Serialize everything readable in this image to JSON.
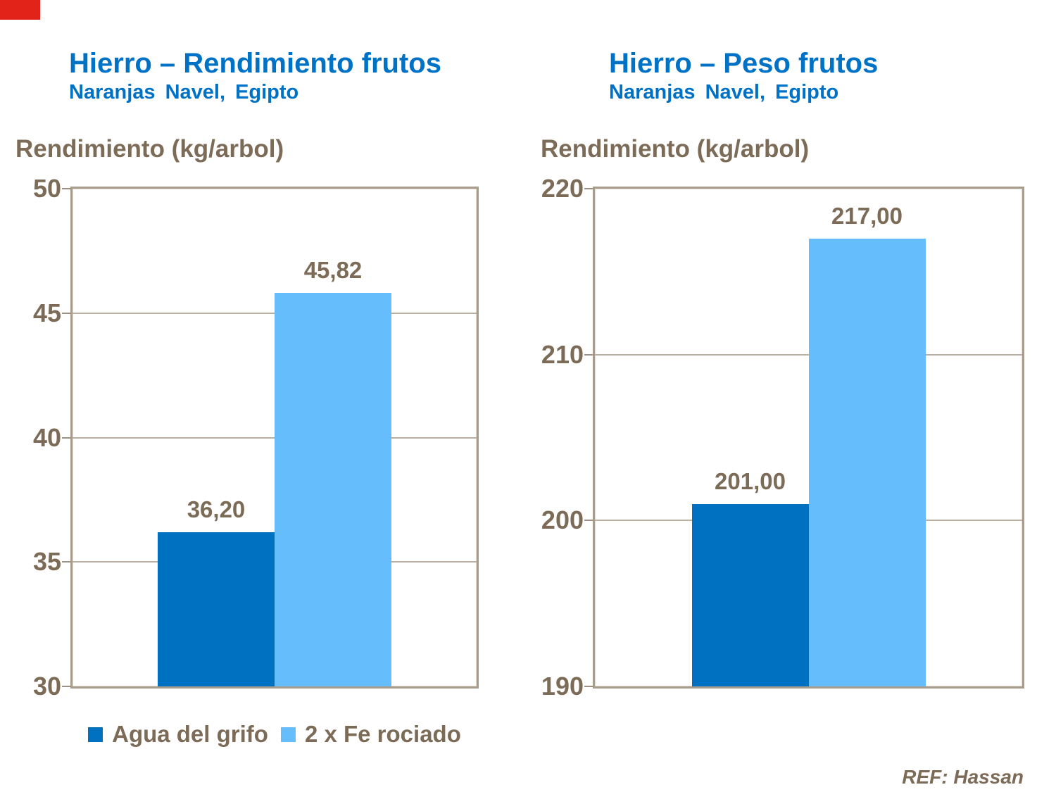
{
  "slide": {
    "background": "#FFFFFF",
    "corner_color": "#E2231A",
    "title_color": "#0072C6",
    "text_color": "#7C6B57"
  },
  "chart_data": [
    {
      "type": "bar",
      "title": "Hierro – Rendimiento frutos",
      "subtitle": "Naranjas Navel, Egipto",
      "ylabel": "Rendimiento (kg/arbol)",
      "xlabel": "",
      "categories": [
        ""
      ],
      "series": [
        {
          "name": "Agua del grifo",
          "value": 36.2,
          "value_label": "36,20",
          "color": "#0070C0"
        },
        {
          "name": "2 x Fe rociado",
          "value": 45.82,
          "value_label": "45,82",
          "color": "#66BDFB"
        }
      ],
      "ylim": [
        30,
        50
      ],
      "yticks": [
        30,
        35,
        40,
        45,
        50
      ],
      "ytick_labels": [
        "30",
        "35",
        "40",
        "45",
        "50"
      ],
      "grid": true,
      "legend_position": "bottom"
    },
    {
      "type": "bar",
      "title": "Hierro – Peso frutos",
      "subtitle": "Naranjas Navel, Egipto",
      "ylabel": "Rendimiento (kg/arbol)",
      "xlabel": "",
      "categories": [
        ""
      ],
      "series": [
        {
          "name": "Agua del grifo",
          "value": 201.0,
          "value_label": "201,00",
          "color": "#0070C0"
        },
        {
          "name": "2 x Fe rociado",
          "value": 217.0,
          "value_label": "217,00",
          "color": "#66BDFB"
        }
      ],
      "ylim": [
        190,
        220
      ],
      "yticks": [
        190,
        200,
        210,
        220
      ],
      "ytick_labels": [
        "190",
        "200",
        "210",
        "220"
      ],
      "grid": true,
      "legend_position": "none"
    }
  ],
  "legend": {
    "items": [
      {
        "label": "Agua del grifo",
        "color": "#0070C0"
      },
      {
        "label": "2 x Fe rociado",
        "color": "#66BDFB"
      }
    ]
  },
  "footer": {
    "ref": "REF: Hassan"
  }
}
